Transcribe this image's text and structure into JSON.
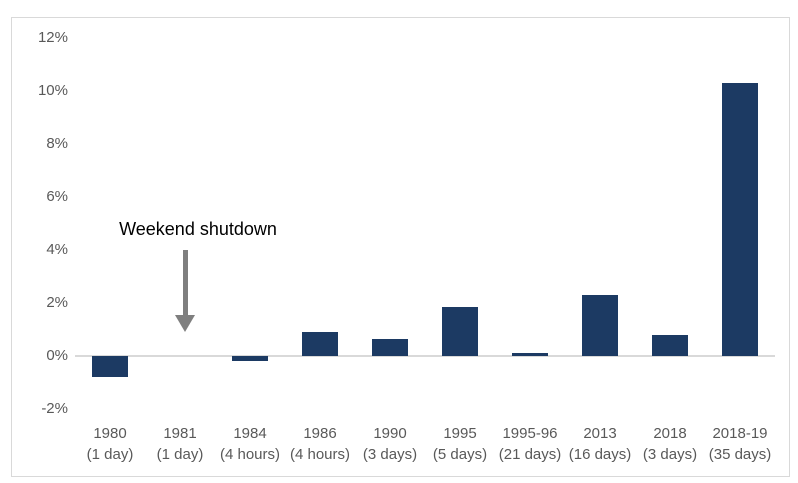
{
  "chart_data": {
    "type": "bar",
    "title": "",
    "xlabel": "",
    "ylabel": "",
    "categories": [
      "1980",
      "1981",
      "1984",
      "1986",
      "1990",
      "1995",
      "1995-96",
      "2013",
      "2018",
      "2018-19"
    ],
    "category_sublabels": [
      "(1 day)",
      "(1 day)",
      "(4 hours)",
      "(4 hours)",
      "(3 days)",
      "(5 days)",
      "(21 days)",
      "(16 days)",
      "(3 days)",
      "(35 days)"
    ],
    "values": [
      -0.8,
      0,
      -0.2,
      0.9,
      0.65,
      1.85,
      0.1,
      2.3,
      0.8,
      10.3
    ],
    "unit": "%",
    "ylim": [
      -2,
      12
    ],
    "ytick_step": 2,
    "ytick_labels": [
      "-2%",
      "0%",
      "2%",
      "4%",
      "6%",
      "8%",
      "10%",
      "12%"
    ],
    "grid": false,
    "legend": false,
    "colors": {
      "bar": "#1c3a63",
      "axis_line": "#d9d9d9",
      "frame_border": "#d9d9d9",
      "tick_label": "#595959",
      "annotation_text": "#000000",
      "arrow": "#7f7f7f"
    },
    "annotation": {
      "text": "Weekend shutdown",
      "target_category": "1981"
    }
  }
}
